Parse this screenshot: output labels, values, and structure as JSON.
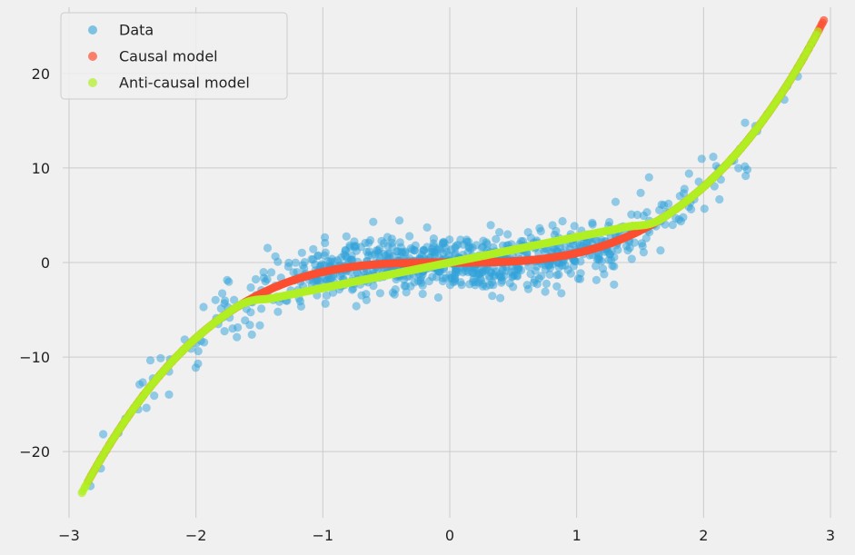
{
  "chart_data": {
    "type": "scatter",
    "title": "",
    "xlabel": "",
    "ylabel": "",
    "xlim": [
      -3.05,
      3.05
    ],
    "ylim": [
      -27,
      27
    ],
    "xticks": [
      -3,
      -2,
      -1,
      0,
      1,
      2,
      3
    ],
    "yticks": [
      -20,
      -10,
      0,
      10,
      20
    ],
    "xtick_labels": [
      "−3",
      "−2",
      "−1",
      "0",
      "1",
      "2",
      "3"
    ],
    "ytick_labels": [
      "−20",
      "−10",
      "0",
      "10",
      "20"
    ],
    "grid": true,
    "legend_position": "top-left",
    "series": [
      {
        "name": "Data",
        "color": "#30a2da",
        "alpha": 0.5,
        "generator": "x^3 + noise(sd=1.5)",
        "n_points": 900,
        "sample_points": [
          [
            -2.85,
            -24.5
          ],
          [
            -2.5,
            -17
          ],
          [
            -2,
            -8
          ],
          [
            -1.5,
            -3.5
          ],
          [
            -1,
            -1
          ],
          [
            0,
            0
          ],
          [
            1,
            1
          ],
          [
            1.5,
            3.5
          ],
          [
            2,
            8
          ],
          [
            2.5,
            16
          ],
          [
            2.95,
            24.5
          ]
        ]
      },
      {
        "name": "Causal model",
        "color": "#fc4f30",
        "alpha": 0.7,
        "function": "y = x^3",
        "x_range": [
          -2.85,
          2.95
        ]
      },
      {
        "name": "Anti-causal model",
        "color": "#b0f022",
        "alpha": 0.7,
        "function": "y = x^3 (|x| > 1.75); smooth transition to ~2.7·x for |x| ≤ 1.4",
        "x_range": [
          -2.9,
          2.9
        ]
      }
    ]
  }
}
